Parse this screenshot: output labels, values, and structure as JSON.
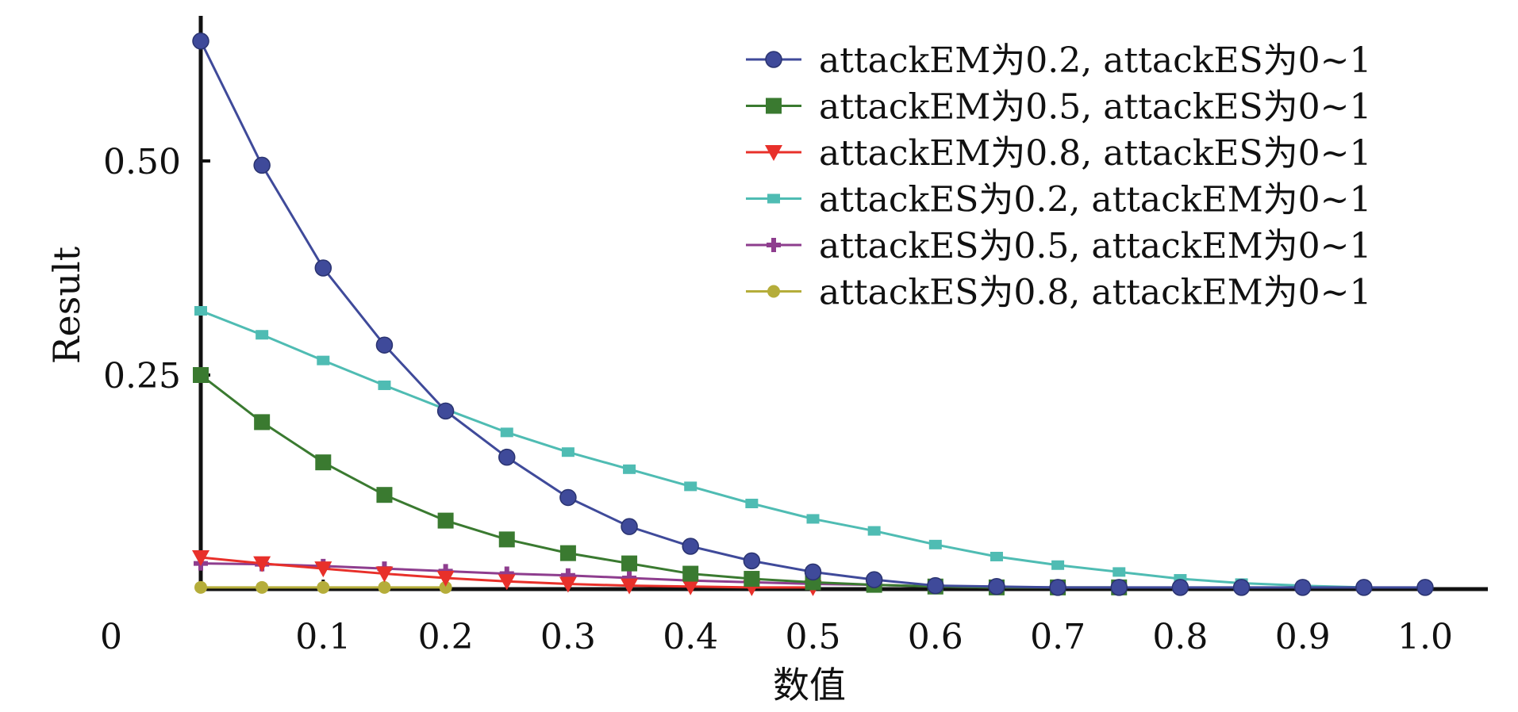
{
  "chart_data": {
    "type": "line",
    "xlabel": "数值",
    "ylabel": "Result",
    "xlim": [
      0,
      1.05
    ],
    "ylim": [
      0,
      0.65
    ],
    "origin_label": "0",
    "x_ticks": [
      {
        "value": 0.1,
        "label": "0.1"
      },
      {
        "value": 0.2,
        "label": "0.2"
      },
      {
        "value": 0.3,
        "label": "0.3"
      },
      {
        "value": 0.4,
        "label": "0.4"
      },
      {
        "value": 0.5,
        "label": "0.5"
      },
      {
        "value": 0.6,
        "label": "0.6"
      },
      {
        "value": 0.7,
        "label": "0.7"
      },
      {
        "value": 0.8,
        "label": "0.8"
      },
      {
        "value": 0.9,
        "label": "0.9"
      },
      {
        "value": 1.0,
        "label": "1.0"
      }
    ],
    "y_ticks": [
      {
        "value": 0.25,
        "label": "0.25"
      },
      {
        "value": 0.5,
        "label": "0.50"
      }
    ],
    "grid": false,
    "legend_position": "top-right",
    "x": [
      0,
      0.05,
      0.1,
      0.15,
      0.2,
      0.25,
      0.3,
      0.35,
      0.4,
      0.45,
      0.5,
      0.55,
      0.6,
      0.65,
      0.7,
      0.75,
      0.8,
      0.85,
      0.9,
      0.95,
      1.0
    ],
    "series": [
      {
        "name": "attackEM为0.2, attackES为0~1",
        "color": "#3f4a9a",
        "marker": "circle",
        "values": [
          0.64,
          0.495,
          0.375,
          0.285,
          0.208,
          0.154,
          0.107,
          0.073,
          0.05,
          0.033,
          0.02,
          0.011,
          0.004,
          0.003,
          0.002,
          0.002,
          0.002,
          0.002,
          0.002,
          0.002,
          0.002
        ]
      },
      {
        "name": "attackEM为0.5, attackES为0~1",
        "color": "#3a7a30",
        "marker": "square",
        "values": [
          0.25,
          0.195,
          0.148,
          0.11,
          0.08,
          0.058,
          0.042,
          0.03,
          0.018,
          0.012,
          0.008,
          0.005,
          0.003,
          0.002,
          0.002,
          0.002,
          null,
          null,
          null,
          null,
          null
        ]
      },
      {
        "name": "attackEM为0.8, attackES为0~1",
        "color": "#e8302a",
        "marker": "triangle-down",
        "values": [
          0.037,
          0.03,
          0.024,
          0.018,
          0.013,
          0.009,
          0.006,
          0.004,
          0.003,
          0.002,
          0.002,
          null,
          null,
          null,
          null,
          null,
          null,
          null,
          null,
          null,
          null
        ]
      },
      {
        "name": "attackES为0.2, attackEM为0~1",
        "color": "#4fbcb3",
        "marker": "square-small",
        "values": [
          0.325,
          0.297,
          0.267,
          0.238,
          0.21,
          0.183,
          0.16,
          0.14,
          0.12,
          0.1,
          0.082,
          0.068,
          0.052,
          0.038,
          0.028,
          0.02,
          0.012,
          0.007,
          0.004,
          0.002,
          null
        ]
      },
      {
        "name": "attackES为0.5, attackEM为0~1",
        "color": "#8e3d8e",
        "marker": "plus",
        "values": [
          0.03,
          0.029,
          0.027,
          0.024,
          0.021,
          0.018,
          0.016,
          0.013,
          0.01,
          0.008,
          0.006,
          0.005,
          0.003,
          0.002,
          0.002,
          null,
          null,
          null,
          null,
          null,
          null
        ]
      },
      {
        "name": "attackES为0.8, attackEM为0~1",
        "color": "#b5ad3a",
        "marker": "star",
        "values": [
          0.002,
          0.002,
          0.002,
          0.002,
          0.002,
          null,
          null,
          null,
          null,
          null,
          null,
          null,
          null,
          null,
          null,
          null,
          null,
          null,
          null,
          null,
          null
        ]
      }
    ]
  }
}
